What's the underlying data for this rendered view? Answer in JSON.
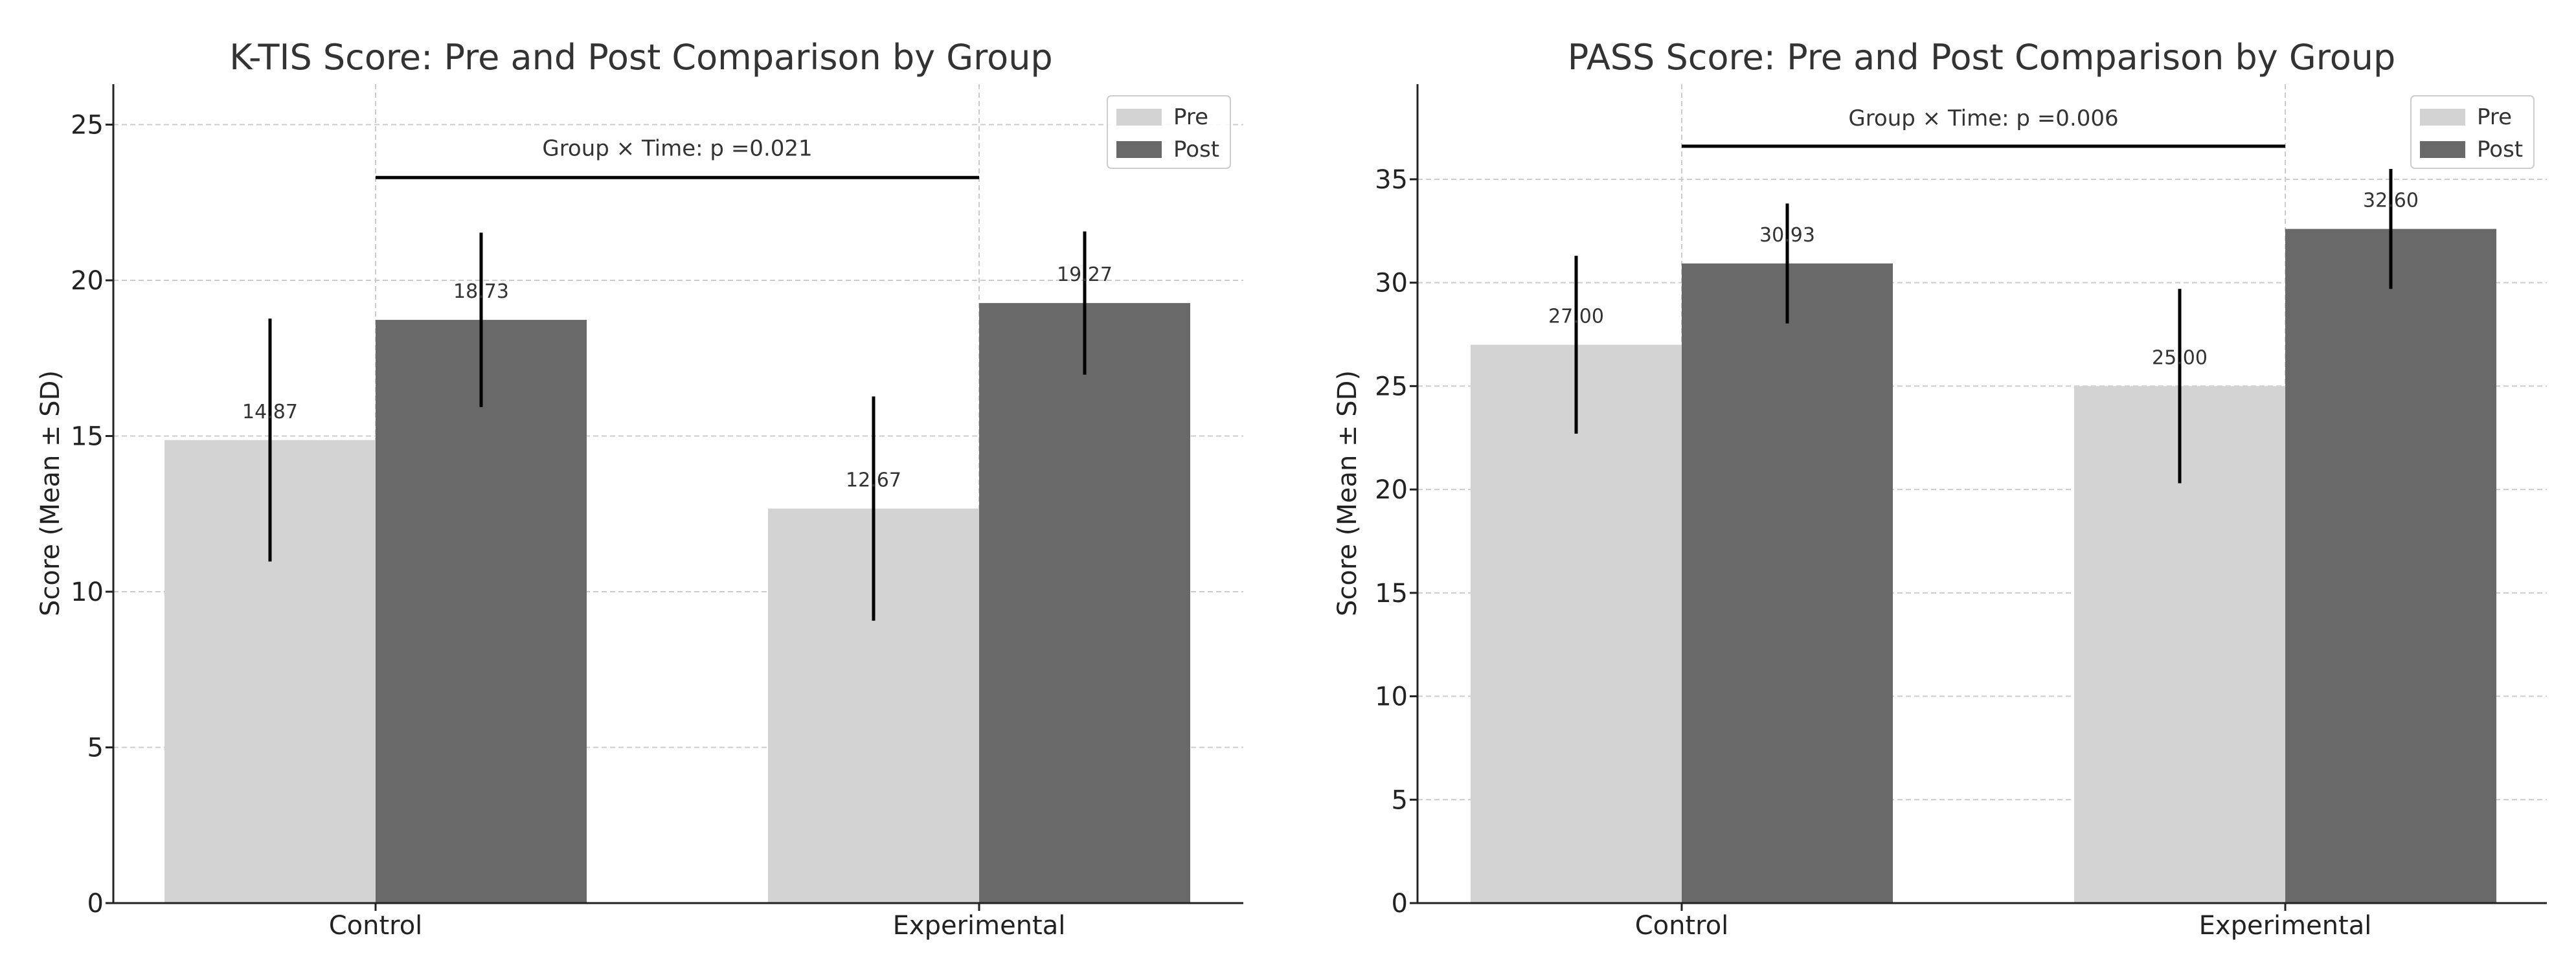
{
  "colors": {
    "pre": "#d3d3d3",
    "post": "#696969",
    "error_bar": "#000000",
    "grid": "#cccccc"
  },
  "chart_data": [
    {
      "type": "bar",
      "title": "K-TIS Score: Pre and Post Comparison by Group",
      "xlabel": "",
      "ylabel": "Score (Mean ± SD)",
      "categories": [
        "Control",
        "Experimental"
      ],
      "series": [
        {
          "name": "Pre",
          "values": [
            14.87,
            12.67
          ],
          "sd": [
            3.9,
            3.6
          ],
          "labels": [
            "14.87",
            "12.67"
          ]
        },
        {
          "name": "Post",
          "values": [
            18.73,
            19.27
          ],
          "sd": [
            2.8,
            2.3
          ],
          "labels": [
            "18.73",
            "19.27"
          ]
        }
      ],
      "ylim": [
        0,
        26.3
      ],
      "yticks": [
        0,
        5,
        10,
        15,
        20,
        25
      ],
      "ytick_labels": [
        "0",
        "5",
        "10",
        "15",
        "20",
        "25"
      ],
      "grid": true,
      "legend_position": "top-right",
      "annotation": {
        "text": "Group × Time: p =0.021",
        "y": 23.3,
        "text_y": 24.0
      }
    },
    {
      "type": "bar",
      "title": "PASS Score: Pre and Post Comparison by Group",
      "xlabel": "",
      "ylabel": "Score (Mean ± SD)",
      "categories": [
        "Control",
        "Experimental"
      ],
      "series": [
        {
          "name": "Pre",
          "values": [
            27.0,
            25.0
          ],
          "sd": [
            4.3,
            4.7
          ],
          "labels": [
            "27.00",
            "25.00"
          ]
        },
        {
          "name": "Post",
          "values": [
            30.93,
            32.6
          ],
          "sd": [
            2.9,
            2.9
          ],
          "labels": [
            "30.93",
            "32.60"
          ]
        }
      ],
      "ylim": [
        0,
        39.6
      ],
      "yticks": [
        0,
        5,
        10,
        15,
        20,
        25,
        30,
        35
      ],
      "ytick_labels": [
        "0",
        "5",
        "10",
        "15",
        "20",
        "25",
        "30",
        "35"
      ],
      "grid": true,
      "legend_position": "top-right",
      "annotation": {
        "text": "Group × Time: p =0.006",
        "y": 36.6,
        "text_y": 37.6
      }
    }
  ]
}
